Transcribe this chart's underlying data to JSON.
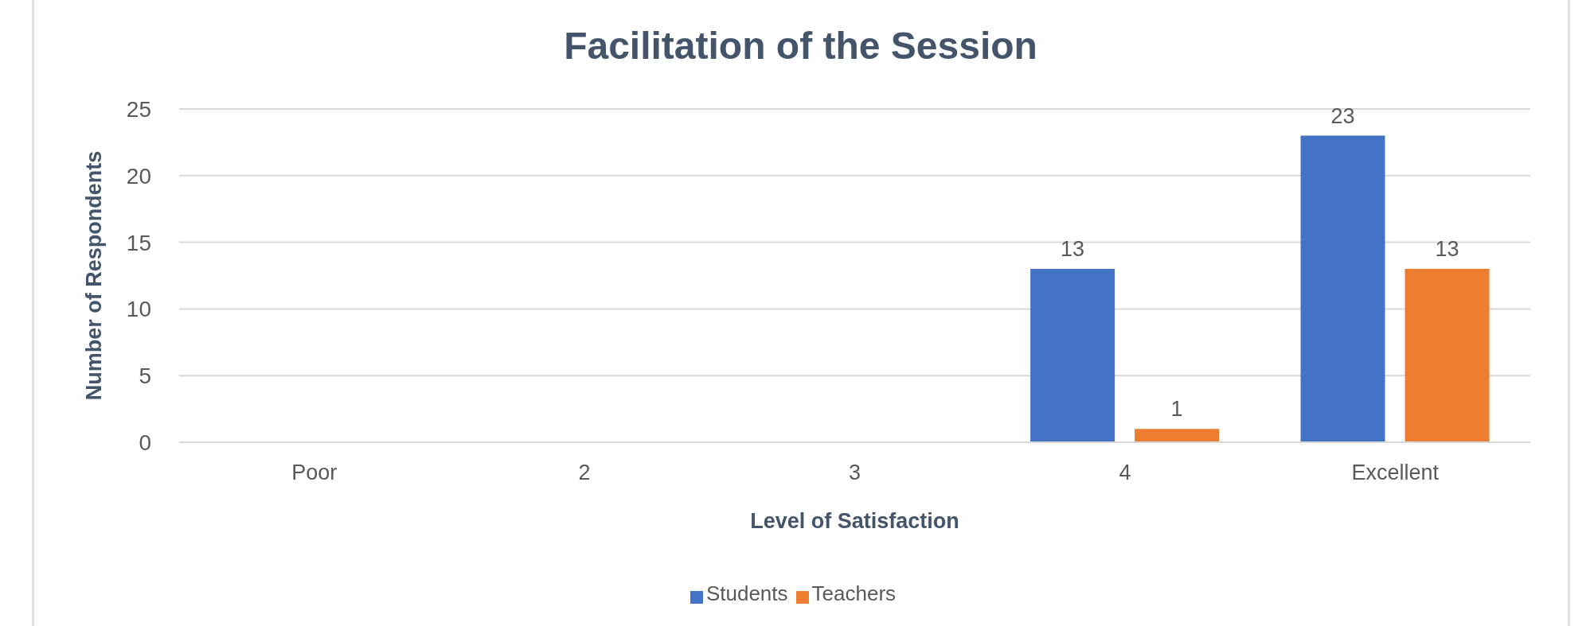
{
  "chart_data": {
    "type": "bar",
    "title": "Facilitation of the Session",
    "xlabel": "Level of Satisfaction",
    "ylabel": "Number of Respondents",
    "categories": [
      "Poor",
      "2",
      "3",
      "4",
      "Excellent"
    ],
    "series": [
      {
        "name": "Students",
        "color": "#4472c4",
        "values": [
          null,
          null,
          null,
          13,
          23
        ]
      },
      {
        "name": "Teachers",
        "color": "#ed7d31",
        "values": [
          null,
          null,
          null,
          1,
          13
        ]
      }
    ],
    "ylim": [
      0,
      25
    ],
    "yticks": [
      0,
      5,
      10,
      15,
      20,
      25
    ],
    "grid": "y",
    "legend": "bottom",
    "data_labels": true
  }
}
